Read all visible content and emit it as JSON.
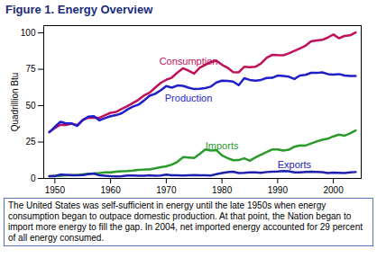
{
  "chart_data": {
    "type": "line",
    "title": "Figure 1.  Energy Overview",
    "ylabel": "Quadrillion Btu",
    "caption": "The United States was self-sufficient in energy until the late 1950s when energy consumption began to outpace domestic production.  At that point, the Nation began to import more energy to fill the gap. In 2004, net imported energy accounted for 29 percent of all energy consumed.",
    "x": [
      1949,
      1950,
      1951,
      1952,
      1953,
      1954,
      1955,
      1956,
      1957,
      1958,
      1959,
      1960,
      1961,
      1962,
      1963,
      1964,
      1965,
      1966,
      1967,
      1968,
      1969,
      1970,
      1971,
      1972,
      1973,
      1974,
      1975,
      1976,
      1977,
      1978,
      1979,
      1980,
      1981,
      1982,
      1983,
      1984,
      1985,
      1986,
      1987,
      1988,
      1989,
      1990,
      1991,
      1992,
      1993,
      1994,
      1995,
      1996,
      1997,
      1998,
      1999,
      2000,
      2001,
      2002,
      2003,
      2004
    ],
    "xlim": [
      1948,
      2005
    ],
    "xticks": [
      1950,
      1960,
      1970,
      1980,
      1990,
      2000
    ],
    "ylim": [
      0,
      105
    ],
    "yticks": [
      0,
      25,
      50,
      75,
      100
    ],
    "grid": false,
    "series": [
      {
        "name": "Consumption",
        "color": "#c0105a",
        "values": [
          32.0,
          34.6,
          36.9,
          36.7,
          37.7,
          36.6,
          40.2,
          41.7,
          41.8,
          41.6,
          43.5,
          45.1,
          45.7,
          47.8,
          49.6,
          51.8,
          54.0,
          57.0,
          58.9,
          62.4,
          65.6,
          67.8,
          69.3,
          72.7,
          75.7,
          74.0,
          72.0,
          76.0,
          78.0,
          80.0,
          80.9,
          78.1,
          76.1,
          73.1,
          72.9,
          76.7,
          76.4,
          76.7,
          79.0,
          82.8,
          84.9,
          84.7,
          84.6,
          85.9,
          87.6,
          89.3,
          91.2,
          94.2,
          94.8,
          95.2,
          96.8,
          98.9,
          96.3,
          97.9,
          98.3,
          100.3
        ]
      },
      {
        "name": "Production",
        "color": "#1f1fcc",
        "values": [
          31.7,
          35.5,
          38.9,
          37.8,
          37.8,
          36.1,
          40.1,
          42.5,
          42.7,
          39.9,
          41.5,
          42.8,
          43.5,
          44.8,
          47.3,
          49.3,
          50.7,
          53.5,
          56.8,
          58.1,
          60.5,
          63.5,
          62.4,
          63.9,
          63.6,
          62.4,
          61.4,
          61.6,
          62.1,
          63.1,
          65.9,
          67.2,
          67.0,
          66.6,
          64.1,
          68.9,
          67.7,
          67.2,
          67.7,
          69.0,
          69.1,
          70.7,
          70.4,
          69.9,
          68.3,
          70.7,
          71.2,
          72.6,
          72.5,
          72.9,
          71.7,
          71.3,
          71.7,
          70.7,
          70.4,
          70.4
        ]
      },
      {
        "name": "Imports",
        "color": "#2a9a2a",
        "values": [
          1.5,
          1.9,
          1.9,
          2.1,
          2.3,
          2.3,
          2.8,
          3.2,
          3.4,
          3.7,
          4.1,
          4.2,
          4.6,
          5.0,
          5.1,
          5.4,
          5.9,
          6.1,
          6.2,
          6.9,
          7.7,
          8.3,
          9.5,
          11.4,
          14.6,
          14.3,
          14.0,
          16.8,
          19.9,
          19.1,
          19.5,
          15.8,
          14.0,
          12.5,
          12.6,
          13.8,
          12.1,
          14.4,
          16.3,
          18.1,
          19.9,
          19.9,
          19.1,
          19.7,
          21.8,
          22.7,
          22.6,
          24.0,
          25.4,
          26.6,
          27.3,
          28.9,
          30.1,
          29.4,
          31.0,
          33.0
        ]
      },
      {
        "name": "Exports",
        "color": "#2020b0",
        "values": [
          1.6,
          1.5,
          2.6,
          2.4,
          2.1,
          2.1,
          2.3,
          2.9,
          3.4,
          2.1,
          1.9,
          1.5,
          1.4,
          1.6,
          2.0,
          2.0,
          1.9,
          1.8,
          2.1,
          1.9,
          2.0,
          2.6,
          2.2,
          2.1,
          2.0,
          2.2,
          2.3,
          2.2,
          2.1,
          2.0,
          2.9,
          3.7,
          4.3,
          4.6,
          3.7,
          3.8,
          4.2,
          4.1,
          3.8,
          4.4,
          4.7,
          4.8,
          5.1,
          4.9,
          4.2,
          4.1,
          4.5,
          4.6,
          4.5,
          4.3,
          3.7,
          4.0,
          3.9,
          3.7,
          4.1,
          4.4
        ]
      }
    ]
  }
}
